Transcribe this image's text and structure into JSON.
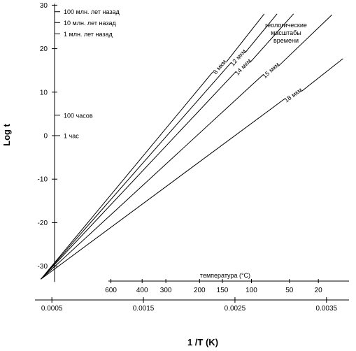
{
  "chart_data": {
    "type": "line",
    "title": "",
    "xlabel": "1 /T (K)",
    "ylabel": "Log t",
    "xlim": [
      0.0003,
      0.0037
    ],
    "ylim": [
      -33,
      30
    ],
    "x_ticks": [
      0.0005,
      0.0015,
      0.0025,
      0.0035
    ],
    "x_tick_labels": [
      "0.0005",
      "0.0015",
      "0.0025",
      "0.0035"
    ],
    "y_ticks": [
      30,
      20,
      10,
      0,
      -10,
      -20,
      -30
    ],
    "y_tick_labels": [
      "30",
      "20",
      "10",
      "0",
      "-10",
      "-20",
      "-30"
    ],
    "origin": {
      "x": 0.00038,
      "y": -33
    },
    "series": [
      {
        "name": "8 мкм",
        "end": {
          "x": 0.00282,
          "y": 28
        }
      },
      {
        "name": "12 мкм",
        "end": {
          "x": 0.00296,
          "y": 28
        }
      },
      {
        "name": "14 мкм",
        "end": {
          "x": 0.00314,
          "y": 28
        }
      },
      {
        "name": "15 мкм",
        "end": {
          "x": 0.00356,
          "y": 27.8
        }
      },
      {
        "name": "18 мкм",
        "end": {
          "x": 0.00368,
          "y": 17.7
        }
      }
    ],
    "series_labels": [
      "8 мкм",
      "12 мкм",
      "14 мкм",
      "15 мкм",
      "18 мкм"
    ],
    "time_markers": [
      {
        "label": "100 млн. лет назад",
        "y": 28.5
      },
      {
        "label": "10 млн. лет назад",
        "y": 26
      },
      {
        "label": "1 млн. лет назад",
        "y": 23.4
      },
      {
        "label": "100 часов",
        "y": 4.7
      },
      {
        "label": "1 час",
        "y": 0
      }
    ],
    "annotation": [
      "геологические",
      "масштабы",
      "времени"
    ],
    "temperature_axis": {
      "label": "температура (°C)",
      "ticks": [
        {
          "c": 600,
          "inv_k": 0.001145
        },
        {
          "c": 400,
          "inv_k": 0.001486
        },
        {
          "c": 300,
          "inv_k": 0.001745
        },
        {
          "c": 200,
          "inv_k": 0.002113
        },
        {
          "c": 150,
          "inv_k": 0.002363
        },
        {
          "c": 100,
          "inv_k": 0.00268
        },
        {
          "c": 50,
          "inv_k": 0.003095
        },
        {
          "c": 20,
          "inv_k": 0.003411
        }
      ]
    },
    "grid": false,
    "legend": "none"
  }
}
